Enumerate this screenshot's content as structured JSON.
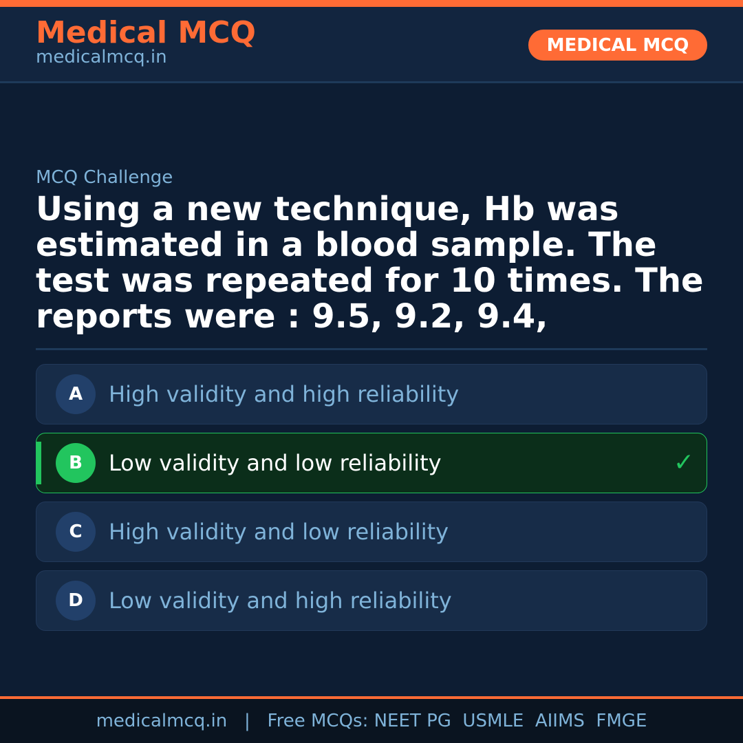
{
  "header": {
    "brand": "Medical MCQ",
    "site": "medicalmcq.in",
    "badge": "MEDICAL MCQ"
  },
  "question": {
    "label": "MCQ Challenge",
    "text": "Using a new technique, Hb was estimated in a blood sample. The test was repeated for 10 times. The reports were : 9.5, 9.2, 9.4,"
  },
  "options": [
    {
      "letter": "A",
      "text": "High validity and high reliability"
    },
    {
      "letter": "B",
      "text": "Low validity and low reliability",
      "correct": true
    },
    {
      "letter": "C",
      "text": "High validity and low reliability"
    },
    {
      "letter": "D",
      "text": "Low validity and high reliability"
    }
  ],
  "footer": {
    "text": "medicalmcq.in   |   Free MCQs: NEET PG  USMLE  AIIMS  FMGE"
  },
  "colors": {
    "accent": "#ff6b35",
    "correct": "#22c55e",
    "background": "#0d1d33"
  },
  "icons": {
    "correct": "checkmark-icon"
  }
}
